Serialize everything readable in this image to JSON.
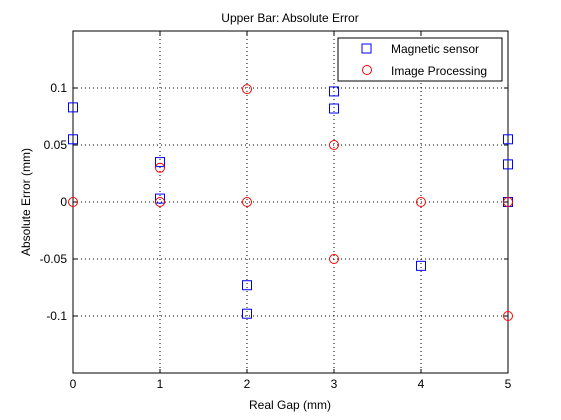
{
  "chart_data": {
    "type": "scatter",
    "title": "Upper Bar: Absolute Error",
    "xlabel": "Real Gap (mm)",
    "ylabel": "Absolute Error (mm)",
    "xlim": [
      0,
      5
    ],
    "ylim": [
      -0.15,
      0.15
    ],
    "grid": true,
    "legend_position": "top-right",
    "x_ticks": [
      "0",
      "1",
      "2",
      "3",
      "4",
      "5"
    ],
    "y_ticks": [
      "-0.1",
      "-0.05",
      "0",
      "0.05",
      "0.1"
    ],
    "series": [
      {
        "name": "Magnetic sensor",
        "marker": "square",
        "color": "#0000ff",
        "points": [
          {
            "x": 0,
            "y": 0.083
          },
          {
            "x": 0,
            "y": 0.055
          },
          {
            "x": 1,
            "y": 0.035
          },
          {
            "x": 1,
            "y": 0.003
          },
          {
            "x": 2,
            "y": -0.073
          },
          {
            "x": 2,
            "y": -0.098
          },
          {
            "x": 3,
            "y": 0.097
          },
          {
            "x": 3,
            "y": 0.082
          },
          {
            "x": 4,
            "y": -0.056
          },
          {
            "x": 5,
            "y": 0.055
          },
          {
            "x": 5,
            "y": 0.033
          },
          {
            "x": 5,
            "y": 0.0
          }
        ]
      },
      {
        "name": "Image Processing",
        "marker": "circle",
        "color": "#ff0000",
        "points": [
          {
            "x": 0,
            "y": 0.0
          },
          {
            "x": 1,
            "y": 0.03
          },
          {
            "x": 1,
            "y": 0.0
          },
          {
            "x": 2,
            "y": 0.099
          },
          {
            "x": 2,
            "y": 0.0
          },
          {
            "x": 3,
            "y": 0.05
          },
          {
            "x": 3,
            "y": -0.05
          },
          {
            "x": 4,
            "y": 0.0
          },
          {
            "x": 5,
            "y": 0.0
          },
          {
            "x": 5,
            "y": -0.1
          }
        ]
      }
    ]
  }
}
